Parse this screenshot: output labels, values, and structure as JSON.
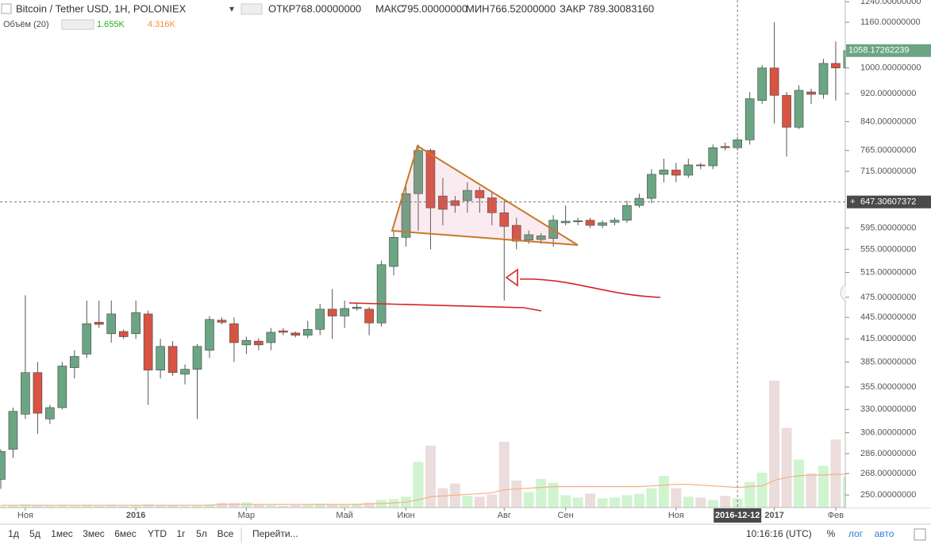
{
  "header": {
    "title": "Bitcoin / Tether USD, 1H, POLONIEX",
    "stats": [
      {
        "label": "ОТКР",
        "value": "768.00000000"
      },
      {
        "label": "МАКС",
        "value": "795.00000000"
      },
      {
        "label": "МИН",
        "value": "766.52000000"
      },
      {
        "label": "ЗАКР",
        "value": "789.30083160"
      }
    ],
    "volume_title": "Объём (20)",
    "volume_value": "1.655K",
    "volume_ma_value": "4.316K"
  },
  "toolbar": {
    "ranges": [
      "1д",
      "5д",
      "1мес",
      "3мес",
      "6мес",
      "YTD",
      "1г",
      "5л",
      "Все"
    ],
    "goto": "Перейти...",
    "time": "10:16:16 (UTC)",
    "options": [
      "%",
      "лог",
      "авто"
    ]
  },
  "chart_data": {
    "type": "candlestick",
    "log_scale": true,
    "grid": false,
    "up_color": "#6ba583",
    "down_color": "#d75442",
    "volume_up_color": "#c8f2c8",
    "volume_down_color": "#ead6d6",
    "volume_ma_color": "#f5b083",
    "categories": [
      null,
      null,
      "Ноя",
      null,
      null,
      null,
      null,
      null,
      null,
      null,
      null,
      "2016",
      null,
      null,
      null,
      null,
      null,
      null,
      null,
      null,
      "Мар",
      null,
      null,
      null,
      null,
      null,
      null,
      null,
      "Май",
      null,
      null,
      null,
      null,
      "Июн",
      null,
      null,
      null,
      null,
      null,
      null,
      null,
      "Авг",
      null,
      null,
      null,
      null,
      "Сен",
      null,
      null,
      null,
      null,
      null,
      null,
      null,
      null,
      "Ноя",
      null,
      null,
      null,
      null,
      "2016-12-12",
      null,
      null,
      "2017",
      null,
      null,
      null,
      null,
      "Фев",
      null
    ],
    "open": [
      263,
      290,
      325,
      372,
      320,
      332,
      378,
      395,
      438,
      422,
      425,
      422,
      450,
      375,
      405,
      370,
      376,
      400,
      441,
      436,
      407,
      412,
      410,
      426,
      423,
      420,
      428,
      457,
      447,
      458,
      457,
      437,
      525,
      577,
      665,
      765,
      660,
      650,
      650,
      672,
      656,
      625,
      600,
      572,
      573,
      575,
      605,
      607,
      610,
      600,
      606,
      610,
      640,
      655,
      708,
      718,
      706,
      730,
      728,
      775,
      772,
      792,
      900,
      1000,
      915,
      825,
      925,
      918,
      1015,
      1000
    ],
    "high": [
      290,
      332,
      478,
      385,
      335,
      385,
      400,
      470,
      470,
      470,
      428,
      470,
      455,
      415,
      412,
      382,
      408,
      447,
      445,
      445,
      418,
      416,
      430,
      430,
      425,
      440,
      465,
      488,
      470,
      465,
      460,
      535,
      590,
      690,
      780,
      770,
      700,
      660,
      690,
      680,
      670,
      650,
      615,
      590,
      585,
      620,
      640,
      615,
      615,
      610,
      615,
      650,
      665,
      720,
      745,
      735,
      745,
      735,
      780,
      785,
      800,
      925,
      1010,
      1160,
      925,
      945,
      935,
      1030,
      1090,
      1080
    ],
    "low": [
      255,
      282,
      320,
      305,
      315,
      330,
      365,
      390,
      430,
      410,
      415,
      415,
      335,
      365,
      368,
      358,
      320,
      390,
      435,
      385,
      395,
      400,
      400,
      420,
      417,
      416,
      420,
      415,
      430,
      455,
      420,
      432,
      510,
      560,
      590,
      555,
      600,
      625,
      625,
      625,
      600,
      470,
      555,
      565,
      565,
      560,
      600,
      600,
      595,
      595,
      600,
      605,
      635,
      645,
      690,
      690,
      700,
      720,
      720,
      765,
      765,
      780,
      890,
      835,
      750,
      820,
      890,
      905,
      900,
      985
    ],
    "close": [
      288,
      328,
      372,
      326,
      332,
      380,
      392,
      436,
      435,
      450,
      418,
      452,
      375,
      405,
      372,
      376,
      405,
      442,
      438,
      410,
      413,
      407,
      424,
      424,
      420,
      428,
      457,
      447,
      458,
      460,
      437,
      528,
      577,
      665,
      765,
      635,
      632,
      640,
      672,
      656,
      625,
      598,
      570,
      582,
      580,
      610,
      608,
      609,
      600,
      605,
      610,
      640,
      655,
      708,
      718,
      706,
      730,
      728,
      772,
      772,
      792,
      905,
      1000,
      915,
      825,
      930,
      918,
      1015,
      1000,
      1058
    ],
    "volume": [
      0.2,
      0.3,
      0.4,
      0.3,
      0.2,
      0.3,
      0.2,
      0.3,
      0.2,
      0.3,
      0.2,
      0.3,
      0.4,
      0.3,
      0.3,
      0.2,
      0.3,
      0.4,
      0.6,
      0.6,
      0.7,
      0.4,
      0.3,
      0.2,
      0.3,
      0.4,
      0.5,
      0.4,
      0.4,
      0.5,
      0.6,
      1.0,
      1.1,
      1.4,
      5.9,
      8.0,
      2.5,
      3.1,
      1.5,
      1.4,
      1.7,
      8.5,
      3.5,
      2.0,
      3.7,
      3.2,
      1.6,
      1.3,
      1.8,
      1.2,
      1.3,
      1.6,
      1.8,
      2.5,
      4.1,
      2.5,
      1.4,
      1.3,
      1.0,
      1.5,
      1.2,
      3.3,
      4.5,
      16.4,
      10.3,
      6.2,
      4.4,
      5.4,
      8.8,
      4.0
    ],
    "volume_ma": [
      0.3,
      0.3,
      0.3,
      0.3,
      0.3,
      0.3,
      0.3,
      0.3,
      0.3,
      0.3,
      0.3,
      0.3,
      0.3,
      0.3,
      0.3,
      0.3,
      0.3,
      0.3,
      0.4,
      0.4,
      0.4,
      0.4,
      0.4,
      0.4,
      0.4,
      0.4,
      0.4,
      0.4,
      0.4,
      0.4,
      0.5,
      0.5,
      0.6,
      0.7,
      1.0,
      1.4,
      1.5,
      1.6,
      1.7,
      1.8,
      1.9,
      2.3,
      2.4,
      2.5,
      2.6,
      2.7,
      2.7,
      2.7,
      2.7,
      2.7,
      2.7,
      2.7,
      2.7,
      2.8,
      2.9,
      3.0,
      3.0,
      2.9,
      2.8,
      2.7,
      2.6,
      2.7,
      2.8,
      3.5,
      3.9,
      4.1,
      4.2,
      4.2,
      4.3,
      4.3
    ],
    "ylim": [
      240,
      1247
    ],
    "yticks": [
      {
        "value": 1240,
        "label": "1240.00000000"
      },
      {
        "value": 1160,
        "label": "1160.00000000"
      },
      {
        "value": 1000,
        "label": "1000.00000000"
      },
      {
        "value": 920,
        "label": "920.00000000"
      },
      {
        "value": 840,
        "label": "840.00000000"
      },
      {
        "value": 765,
        "label": "765.00000000"
      },
      {
        "value": 715,
        "label": "715.00000000"
      },
      {
        "value": 595,
        "label": "595.00000000"
      },
      {
        "value": 555,
        "label": "555.00000000"
      },
      {
        "value": 515,
        "label": "515.00000000"
      },
      {
        "value": 475,
        "label": "475.00000000"
      },
      {
        "value": 445,
        "label": "445.00000000"
      },
      {
        "value": 415,
        "label": "415.00000000"
      },
      {
        "value": 385,
        "label": "385.00000000"
      },
      {
        "value": 355,
        "label": "355.00000000"
      },
      {
        "value": 330,
        "label": "330.00000000"
      },
      {
        "value": 306,
        "label": "306.00000000"
      },
      {
        "value": 286,
        "label": "286.00000000"
      },
      {
        "value": 268,
        "label": "268.00000000"
      },
      {
        "value": 250,
        "label": "250.00000000"
      }
    ],
    "last_price": 1058.17262239,
    "crosshair_price": 647.30607372
  }
}
